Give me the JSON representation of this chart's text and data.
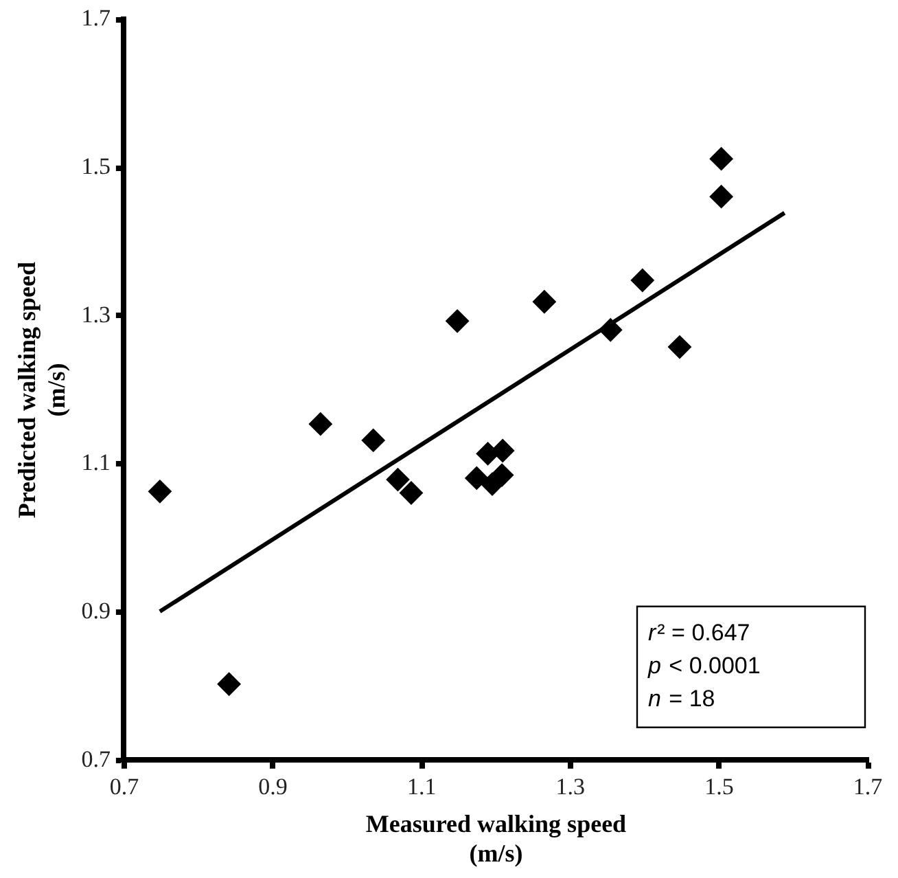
{
  "chart_data": {
    "type": "scatter",
    "xlabel": "Measured walking speed\n(m/s)",
    "ylabel": "Predicted walking speed\n(m/s)",
    "xlim": [
      0.7,
      1.7
    ],
    "xticks": [
      0.7,
      0.9,
      1.1,
      1.3,
      1.5,
      1.7
    ],
    "ylim": [
      0.7,
      1.7
    ],
    "yticks": [
      0.7,
      0.9,
      1.1,
      1.3,
      1.5,
      1.7
    ],
    "grid": false,
    "legend": false,
    "marker": "diamond",
    "series": [
      {
        "color": "#000000",
        "x": [
          0.748,
          0.841,
          0.964,
          1.035,
          1.068,
          1.086,
          1.148,
          1.265,
          1.354,
          1.397,
          1.447,
          1.503,
          1.503,
          1.189,
          1.209,
          1.174,
          1.195,
          1.208
        ],
        "values": [
          1.063,
          0.803,
          1.154,
          1.132,
          1.079,
          1.061,
          1.293,
          1.319,
          1.281,
          1.348,
          1.258,
          1.461,
          1.512,
          1.114,
          1.118,
          1.081,
          1.073,
          1.085
        ]
      },
      {
        "type": "line",
        "color": "#000000",
        "line_style": "solid",
        "marker": "none",
        "x": [
          0.748,
          1.588
        ],
        "values": [
          0.901,
          1.439
        ]
      }
    ],
    "annotations": [
      "r² = 0.647",
      "p < 0.0001",
      "n = 18"
    ]
  }
}
